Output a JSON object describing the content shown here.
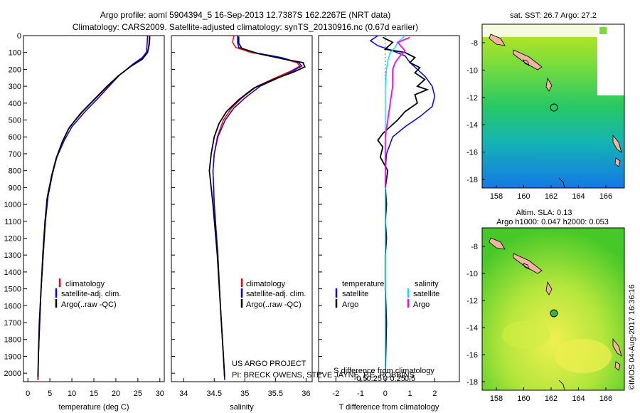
{
  "title_line1": "Argo profile: aoml 5904394_5 16-Sep-2013 12.7387S 162.2267E (NRT data)",
  "title_line2": "Climatology: CARS2009. Satellite-adjusted climatology: synTS_20130916.nc (0.67d earlier)",
  "watermark": "©IMOS 04-Aug-2017 16:36:16",
  "project_line1": "US ARGO PROJECT",
  "project_line2": "PI: BRECK OWENS, STEVE JAYNE, P.E. ROBBINS",
  "colors": {
    "climatology": "#ff0000",
    "satellite": "#0000ff",
    "argo": "#000000",
    "salinity_satellite": "#00e5ff",
    "salinity_argo": "#ff00ff"
  },
  "chart_data": [
    {
      "type": "line",
      "id": "temperature",
      "xlabel": "temperature (deg C)",
      "ylabel": "",
      "xlim": [
        -1,
        31
      ],
      "ylim": [
        2050,
        0
      ],
      "xticks": [
        0,
        5,
        10,
        15,
        20,
        25,
        30
      ],
      "yticks": [
        0,
        100,
        200,
        300,
        400,
        500,
        600,
        700,
        800,
        900,
        1000,
        1100,
        1200,
        1300,
        1400,
        1500,
        1600,
        1700,
        1800,
        1900,
        2000
      ],
      "legend": [
        "climatology",
        "satellite-adj. clim.",
        "Argo(..raw -QC)"
      ],
      "series": [
        {
          "name": "climatology",
          "points": [
            [
              27.6,
              0
            ],
            [
              27.5,
              50
            ],
            [
              27.2,
              100
            ],
            [
              26.2,
              130
            ],
            [
              24,
              170
            ],
            [
              21,
              230
            ],
            [
              18.5,
              290
            ],
            [
              15.5,
              370
            ],
            [
              12.5,
              450
            ],
            [
              9.5,
              540
            ],
            [
              8,
              620
            ],
            [
              6.5,
              720
            ],
            [
              5.5,
              820
            ],
            [
              4.5,
              950
            ],
            [
              4,
              1100
            ],
            [
              3.5,
              1300
            ],
            [
              3,
              1500
            ],
            [
              2.7,
              1700
            ],
            [
              2.4,
              1900
            ],
            [
              2.3,
              2040
            ]
          ]
        },
        {
          "name": "satellite-adj. clim.",
          "points": [
            [
              27.2,
              0
            ],
            [
              27.1,
              50
            ],
            [
              26.9,
              100
            ],
            [
              26,
              130
            ],
            [
              23.8,
              170
            ],
            [
              21,
              230
            ],
            [
              18.8,
              290
            ],
            [
              16,
              370
            ],
            [
              13,
              450
            ],
            [
              10,
              540
            ],
            [
              8.3,
              620
            ],
            [
              6.6,
              720
            ],
            [
              5.6,
              820
            ],
            [
              4.6,
              950
            ],
            [
              4,
              1100
            ],
            [
              3.5,
              1300
            ],
            [
              3,
              1500
            ],
            [
              2.7,
              1700
            ],
            [
              2.4,
              1900
            ],
            [
              2.3,
              2040
            ]
          ]
        },
        {
          "name": "Argo(..raw -QC)",
          "points": [
            [
              27.7,
              5
            ],
            [
              27.6,
              50
            ],
            [
              27.2,
              100
            ],
            [
              26,
              140
            ],
            [
              23.5,
              180
            ],
            [
              20.5,
              240
            ],
            [
              18,
              300
            ],
            [
              15,
              380
            ],
            [
              12,
              460
            ],
            [
              9.3,
              550
            ],
            [
              7.8,
              630
            ],
            [
              6.4,
              730
            ],
            [
              5.4,
              830
            ],
            [
              4.4,
              960
            ],
            [
              3.9,
              1100
            ],
            [
              3.4,
              1300
            ],
            [
              3,
              1500
            ],
            [
              2.6,
              1700
            ],
            [
              2.4,
              1900
            ],
            [
              2.3,
              2020
            ]
          ]
        }
      ]
    },
    {
      "type": "line",
      "id": "salinity",
      "xlabel": "salinity",
      "xlim": [
        33.8,
        36.1
      ],
      "ylim": [
        2050,
        0
      ],
      "xticks": [
        34,
        34.5,
        35,
        35.5,
        36
      ],
      "legend": [
        "climatology",
        "satellite-adj. clim.",
        "Argo(..raw -QC)"
      ],
      "series": [
        {
          "name": "climatology",
          "points": [
            [
              34.82,
              0
            ],
            [
              34.8,
              40
            ],
            [
              34.85,
              70
            ],
            [
              35.1,
              100
            ],
            [
              35.55,
              130
            ],
            [
              35.85,
              160
            ],
            [
              35.9,
              180
            ],
            [
              35.75,
              210
            ],
            [
              35.5,
              250
            ],
            [
              35.2,
              300
            ],
            [
              34.95,
              370
            ],
            [
              34.78,
              430
            ],
            [
              34.65,
              500
            ],
            [
              34.55,
              600
            ],
            [
              34.5,
              700
            ],
            [
              34.48,
              800
            ],
            [
              34.5,
              1000
            ],
            [
              34.56,
              1300
            ],
            [
              34.6,
              1600
            ],
            [
              34.65,
              1900
            ],
            [
              34.67,
              2040
            ]
          ]
        },
        {
          "name": "satellite-adj. clim.",
          "points": [
            [
              34.88,
              0
            ],
            [
              34.88,
              40
            ],
            [
              34.9,
              70
            ],
            [
              35.15,
              100
            ],
            [
              35.6,
              130
            ],
            [
              35.88,
              160
            ],
            [
              35.93,
              180
            ],
            [
              35.78,
              210
            ],
            [
              35.55,
              250
            ],
            [
              35.25,
              300
            ],
            [
              35,
              370
            ],
            [
              34.82,
              430
            ],
            [
              34.68,
              500
            ],
            [
              34.56,
              600
            ],
            [
              34.5,
              700
            ],
            [
              34.48,
              800
            ],
            [
              34.5,
              1000
            ],
            [
              34.56,
              1300
            ],
            [
              34.6,
              1600
            ],
            [
              34.65,
              1900
            ],
            [
              34.67,
              2040
            ]
          ]
        },
        {
          "name": "Argo(..raw -QC)",
          "points": [
            [
              34.9,
              5
            ],
            [
              34.9,
              45
            ],
            [
              34.95,
              75
            ],
            [
              35.2,
              105
            ],
            [
              35.65,
              140
            ],
            [
              35.95,
              160
            ],
            [
              35.98,
              185
            ],
            [
              35.8,
              215
            ],
            [
              35.5,
              255
            ],
            [
              35.15,
              310
            ],
            [
              34.9,
              380
            ],
            [
              34.7,
              450
            ],
            [
              34.58,
              520
            ],
            [
              34.5,
              600
            ],
            [
              34.45,
              700
            ],
            [
              34.42,
              800
            ],
            [
              34.48,
              1000
            ],
            [
              34.55,
              1300
            ],
            [
              34.6,
              1600
            ],
            [
              34.65,
              1900
            ],
            [
              34.67,
              2020
            ]
          ]
        }
      ]
    },
    {
      "type": "line",
      "id": "difference",
      "xlabel": "T difference from climatology",
      "xlabel_top": "S difference from climatology",
      "xlim": [
        -2.7,
        3.0
      ],
      "ylim": [
        2050,
        0
      ],
      "xticks": [
        -2,
        -1,
        0,
        1,
        2
      ],
      "xticks_salinity_labels": [
        "-0.5",
        "-0.25",
        "0",
        "0.25",
        "0.5"
      ],
      "legend_temperature_title": "temperature",
      "legend_salinity_title": "salinity",
      "legend": [
        "satellite",
        "Argo"
      ],
      "series": [
        {
          "name": "temperature satellite",
          "points": [
            [
              -0.3,
              0
            ],
            [
              -0.6,
              30
            ],
            [
              -0.3,
              60
            ],
            [
              0.3,
              90
            ],
            [
              0.8,
              120
            ],
            [
              1.0,
              160
            ],
            [
              1.3,
              200
            ],
            [
              1.6,
              240
            ],
            [
              1.9,
              300
            ],
            [
              2.0,
              360
            ],
            [
              1.9,
              420
            ],
            [
              1.4,
              480
            ],
            [
              0.8,
              540
            ],
            [
              0.3,
              600
            ],
            [
              0.05,
              700
            ],
            [
              0.0,
              800
            ],
            [
              0.0,
              1000
            ],
            [
              0.0,
              2000
            ]
          ]
        },
        {
          "name": "temperature Argo",
          "points": [
            [
              -0.1,
              10
            ],
            [
              0.3,
              40
            ],
            [
              0.0,
              80
            ],
            [
              0.8,
              100
            ],
            [
              1.2,
              130
            ],
            [
              1.0,
              160
            ],
            [
              1.4,
              190
            ],
            [
              1.2,
              220
            ],
            [
              1.6,
              260
            ],
            [
              1.3,
              300
            ],
            [
              1.7,
              320
            ],
            [
              1.2,
              350
            ],
            [
              1.3,
              400
            ],
            [
              0.8,
              450
            ],
            [
              0.5,
              500
            ],
            [
              0.2,
              540
            ],
            [
              -0.1,
              580
            ],
            [
              -0.3,
              620
            ],
            [
              -0.1,
              660
            ],
            [
              -0.2,
              720
            ],
            [
              0.1,
              800
            ],
            [
              0.0,
              900
            ],
            [
              0.05,
              1000
            ],
            [
              0.0,
              1100
            ],
            [
              0.05,
              1200
            ],
            [
              0.0,
              1300
            ],
            [
              0.0,
              1500
            ],
            [
              0.05,
              1700
            ],
            [
              0.0,
              2000
            ]
          ]
        },
        {
          "name": "salinity satellite",
          "points": [
            [
              0.8,
              0
            ],
            [
              0.5,
              40
            ],
            [
              0.4,
              70
            ],
            [
              0.2,
              100
            ],
            [
              0.1,
              150
            ],
            [
              0.05,
              200
            ],
            [
              0.0,
              300
            ],
            [
              0.0,
              600
            ],
            [
              0.0,
              900
            ],
            [
              0.0,
              2000
            ]
          ]
        },
        {
          "name": "salinity Argo",
          "points": [
            [
              1.0,
              10
            ],
            [
              0.5,
              40
            ],
            [
              0.8,
              90
            ],
            [
              0.6,
              120
            ],
            [
              0.4,
              160
            ],
            [
              0.3,
              200
            ],
            [
              0.3,
              300
            ],
            [
              0.2,
              400
            ],
            [
              0.1,
              500
            ],
            [
              0.0,
              600
            ],
            [
              0.0,
              800
            ],
            [
              0.0,
              900
            ]
          ]
        }
      ]
    }
  ],
  "maps": [
    {
      "id": "sst-map",
      "title": "sat. SST: 26.7  Argo: 27.2",
      "xticks": [
        "158",
        "160",
        "162",
        "164",
        "166"
      ],
      "yticks": [
        "-8",
        "-10",
        "-12",
        "-14",
        "-16",
        "-18"
      ]
    },
    {
      "id": "sla-map",
      "title_line1": "Altim. SLA: 0.13",
      "title_line2": "Argo h1000: 0.047 h2000: 0.053",
      "xticks": [
        "158",
        "160",
        "162",
        "164",
        "166"
      ],
      "yticks": [
        "-8",
        "-10",
        "-12",
        "-14",
        "-16",
        "-18"
      ]
    }
  ]
}
